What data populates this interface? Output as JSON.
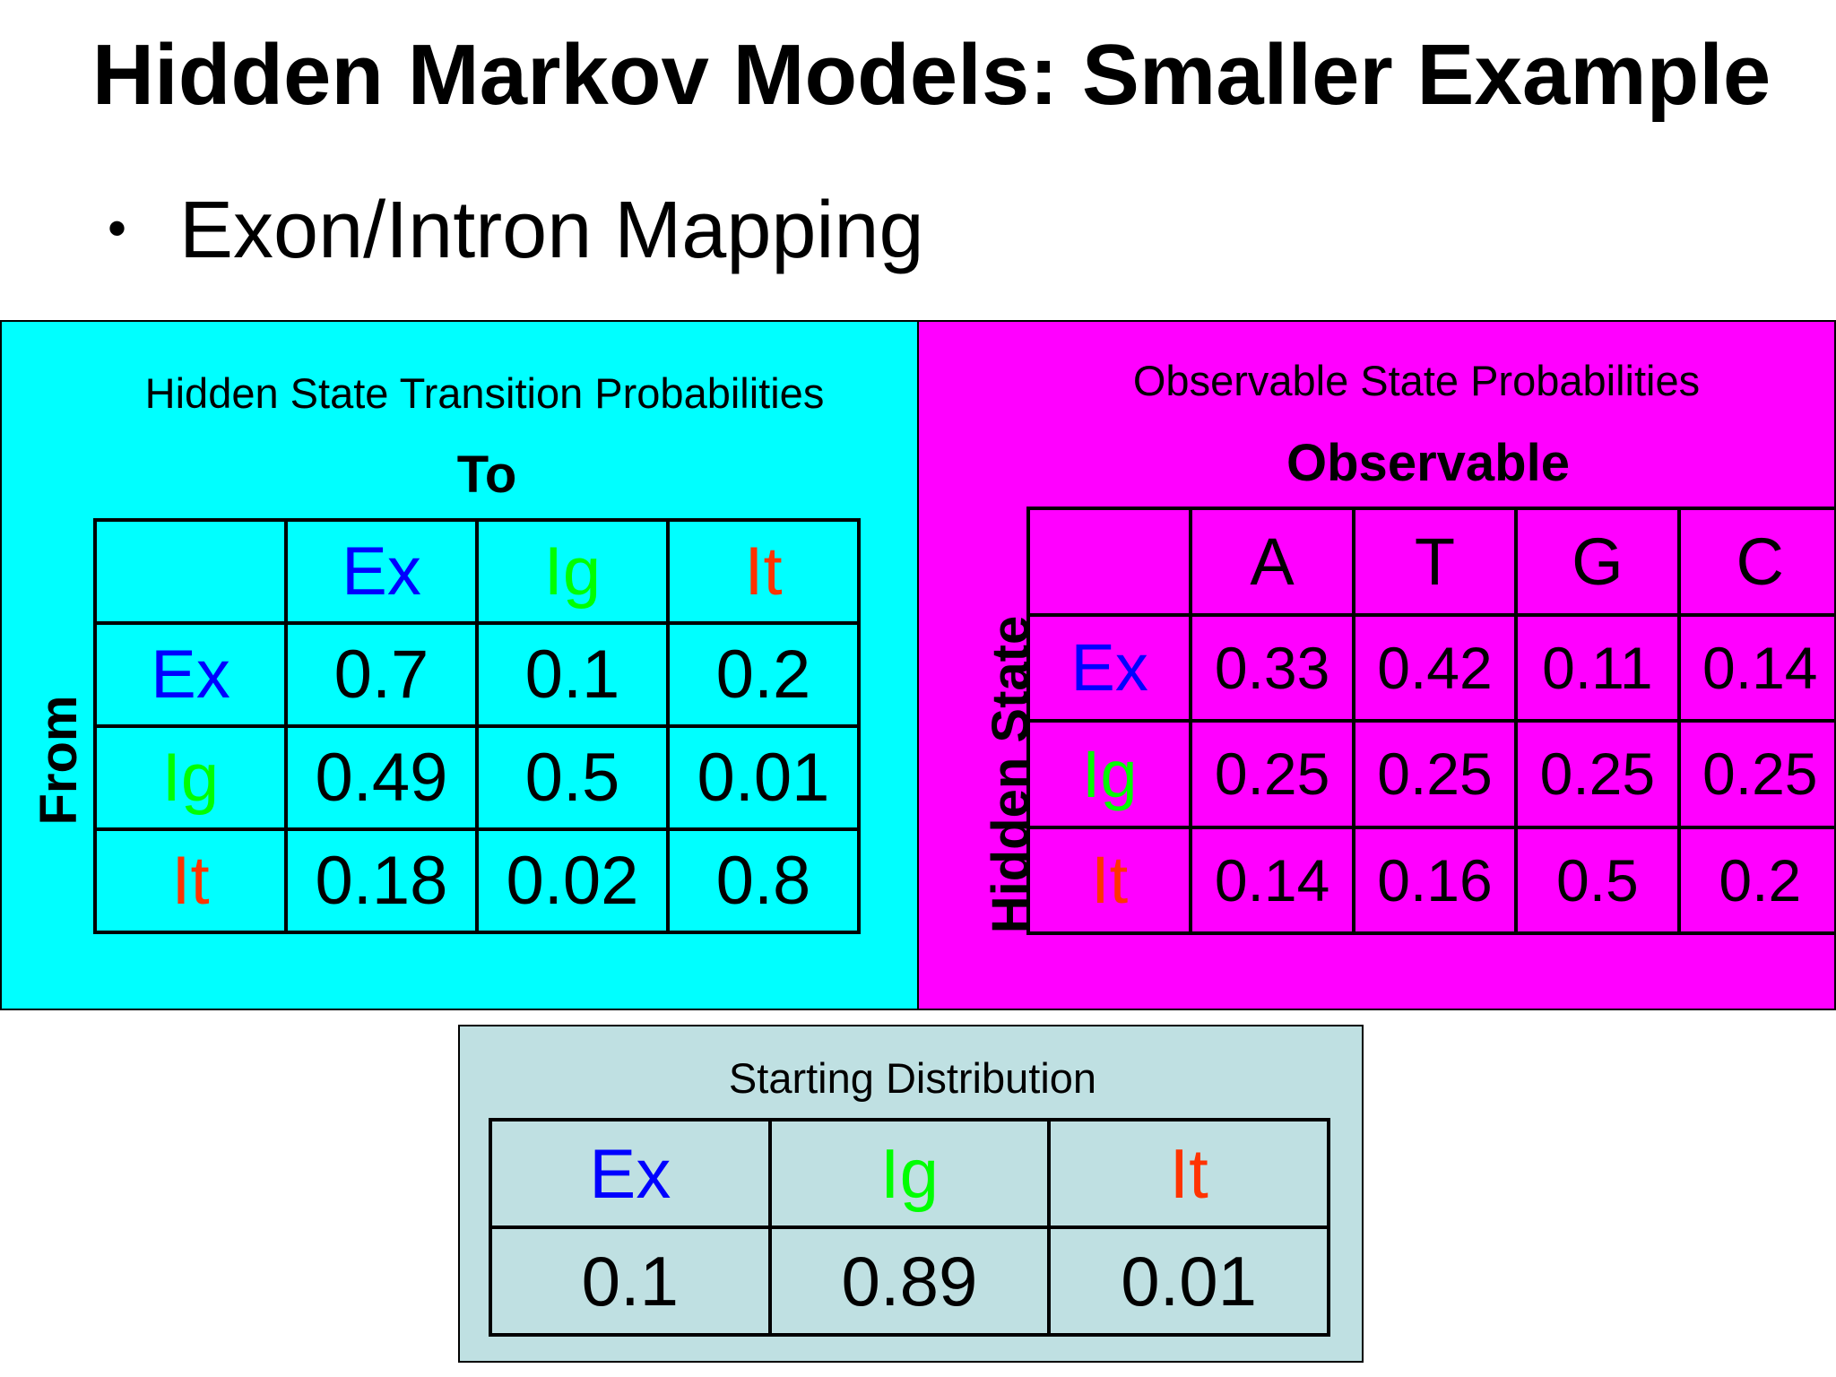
{
  "slide": {
    "title": "Hidden Markov Models:  Smaller Example",
    "bullet": "Exon/Intron Mapping"
  },
  "transition_panel": {
    "heading": "Hidden State Transition Probabilities",
    "to_label": "To",
    "from_label": "From",
    "columns": [
      "Ex",
      "Ig",
      "It"
    ],
    "rows": [
      {
        "state": "Ex",
        "values": [
          "0.7",
          "0.1",
          "0.2"
        ]
      },
      {
        "state": "Ig",
        "values": [
          "0.49",
          "0.5",
          "0.01"
        ]
      },
      {
        "state": "It",
        "values": [
          "0.18",
          "0.02",
          "0.8"
        ]
      }
    ]
  },
  "observable_panel": {
    "heading": "Observable State Probabilities",
    "observable_label": "Observable",
    "hidden_state_label": "Hidden State",
    "columns": [
      "A",
      "T",
      "G",
      "C"
    ],
    "rows": [
      {
        "state": "Ex",
        "values": [
          "0.33",
          "0.42",
          "0.11",
          "0.14"
        ]
      },
      {
        "state": "Ig",
        "values": [
          "0.25",
          "0.25",
          "0.25",
          "0.25"
        ]
      },
      {
        "state": "It",
        "values": [
          "0.14",
          "0.16",
          "0.5",
          "0.2"
        ]
      }
    ]
  },
  "start_panel": {
    "heading": "Starting Distribution",
    "columns": [
      "Ex",
      "Ig",
      "It"
    ],
    "values": [
      "0.1",
      "0.89",
      "0.01"
    ]
  },
  "colors": {
    "transition_background": "#00ffff",
    "observable_background": "#ff00ff",
    "start_background": "#bfe0e2",
    "Ex": "#0000ff",
    "Ig": "#00ff00",
    "It": "#ff3300"
  }
}
